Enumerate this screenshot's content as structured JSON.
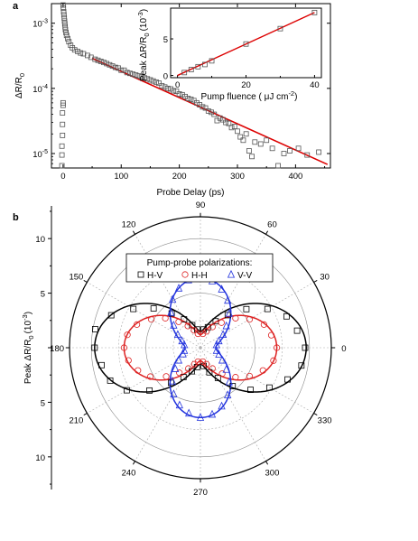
{
  "chart_data": [
    {
      "panel_label": "a",
      "type": "scatter",
      "xlabel": "Probe Delay (ps)",
      "ylabel": "ΔR/R",
      "ylabel_sub": "0",
      "xlim": [
        -20,
        460
      ],
      "ylim": [
        6e-06,
        0.002
      ],
      "yscale": "log",
      "x_ticks": [
        0,
        100,
        200,
        300,
        400
      ],
      "y_ticks": [
        {
          "value": 1e-05,
          "mant": "10",
          "exp": "-5"
        },
        {
          "value": 0.0001,
          "mant": "10",
          "exp": "-4"
        },
        {
          "value": 0.001,
          "mant": "10",
          "exp": "-3"
        }
      ],
      "series": [
        {
          "marker": "square",
          "color": "#555555",
          "points": [
            [
              -2,
              6.5e-06
            ],
            [
              -2,
              9.5e-06
            ],
            [
              -2,
              1.3e-05
            ],
            [
              -1,
              1.9e-05
            ],
            [
              -1,
              2.8e-05
            ],
            [
              -1,
              4.2e-05
            ],
            [
              0,
              5.5e-05
            ],
            [
              0,
              6e-05
            ],
            [
              0,
              0.0019
            ],
            [
              0.5,
              0.0017
            ],
            [
              1,
              0.0015
            ],
            [
              1.5,
              0.00135
            ],
            [
              2,
              0.0012
            ],
            [
              2.5,
              0.00108
            ],
            [
              3,
              0.00098
            ],
            [
              3.5,
              0.00088
            ],
            [
              4,
              0.0008
            ],
            [
              5,
              0.00072
            ],
            [
              6,
              0.00065
            ],
            [
              8,
              0.00058
            ],
            [
              10,
              0.00052
            ],
            [
              13,
              0.00046
            ],
            [
              16,
              0.00042
            ],
            [
              20,
              0.00039
            ],
            [
              25,
              0.00037
            ],
            [
              30,
              0.00035
            ],
            [
              35,
              0.00034
            ],
            [
              42,
              0.00032
            ],
            [
              48,
              0.0003
            ],
            [
              55,
              0.00028
            ],
            [
              60,
              0.00027
            ],
            [
              65,
              0.00026
            ],
            [
              70,
              0.00025
            ],
            [
              75,
              0.00024
            ],
            [
              80,
              0.00023
            ],
            [
              85,
              0.00022
            ],
            [
              90,
              0.00021
            ],
            [
              95,
              0.000205
            ],
            [
              100,
              0.00019
            ],
            [
              105,
              0.00019
            ],
            [
              110,
              0.000175
            ],
            [
              115,
              0.00017
            ],
            [
              120,
              0.000165
            ],
            [
              125,
              0.00016
            ],
            [
              130,
              0.000155
            ],
            [
              135,
              0.00015
            ],
            [
              140,
              0.000145
            ],
            [
              145,
              0.00014
            ],
            [
              150,
              0.000135
            ],
            [
              155,
              0.00013
            ],
            [
              160,
              0.000125
            ],
            [
              165,
              0.00012
            ],
            [
              170,
              0.00011
            ],
            [
              175,
              0.000105
            ],
            [
              180,
              0.0001
            ],
            [
              185,
              9.8e-05
            ],
            [
              190,
              9.2e-05
            ],
            [
              195,
              9e-05
            ],
            [
              200,
              8.2e-05
            ],
            [
              205,
              8e-05
            ],
            [
              210,
              7.5e-05
            ],
            [
              215,
              7e-05
            ],
            [
              220,
              6.8e-05
            ],
            [
              225,
              6.5e-05
            ],
            [
              230,
              6e-05
            ],
            [
              235,
              5.6e-05
            ],
            [
              240,
              5.2e-05
            ],
            [
              245,
              5e-05
            ],
            [
              250,
              4.5e-05
            ],
            [
              255,
              4.3e-05
            ],
            [
              260,
              4e-05
            ],
            [
              265,
              3.2e-05
            ],
            [
              270,
              3.5e-05
            ],
            [
              275,
              3.3e-05
            ],
            [
              280,
              3e-05
            ],
            [
              285,
              2.9e-05
            ],
            [
              290,
              2.5e-05
            ],
            [
              295,
              2.6e-05
            ],
            [
              300,
              2.2e-05
            ],
            [
              305,
              1.8e-05
            ],
            [
              310,
              1.6e-05
            ],
            [
              315,
              2e-05
            ],
            [
              320,
              1.1e-05
            ],
            [
              325,
              9e-06
            ],
            [
              330,
              1.5e-05
            ],
            [
              340,
              1.4e-05
            ],
            [
              350,
              1.6e-05
            ],
            [
              360,
              1.2e-05
            ],
            [
              370,
              6.5e-06
            ],
            [
              380,
              1e-05
            ],
            [
              390,
              1.1e-05
            ],
            [
              405,
              1.2e-05
            ],
            [
              420,
              9.5e-06
            ],
            [
              440,
              1.05e-05
            ]
          ]
        },
        {
          "type": "line",
          "color": "#dd0000",
          "x": [
            50,
            455
          ],
          "y": [
            0.00029,
            6.8e-06
          ]
        }
      ]
    },
    {
      "panel_label": "a",
      "inset": true,
      "type": "scatter",
      "xlabel": "Pump fluence ( μJ cm",
      "xlabel_sup": "-2",
      "xlabel_close": ")",
      "ylabel": "Peak ΔR/R",
      "ylabel_sub": "0",
      "ylabel_unit": "(10",
      "ylabel_unit_sup": "-3",
      "ylabel_unit_close": ")",
      "xlim": [
        -2,
        42
      ],
      "ylim": [
        -0.3,
        9.2
      ],
      "x_ticks": [
        0,
        20,
        40
      ],
      "y_ticks": [
        0,
        5
      ],
      "series": [
        {
          "marker": "square",
          "color": "#555555",
          "x": [
            2,
            4,
            6,
            8,
            10,
            20,
            30,
            40
          ],
          "y": [
            0.4,
            0.8,
            1.2,
            1.5,
            2.0,
            4.3,
            6.4,
            8.6
          ]
        },
        {
          "type": "line",
          "color": "#dd0000",
          "x": [
            0,
            40
          ],
          "y": [
            0.0,
            8.6
          ]
        }
      ]
    },
    {
      "panel_label": "b",
      "type": "polar",
      "ylabel": "Peak ΔR/R",
      "ylabel_sub": "0",
      "ylabel_unit": "(10",
      "ylabel_unit_sup": "-3",
      "ylabel_unit_close": ")",
      "r_max": 12,
      "r_ticks": [
        5,
        10
      ],
      "angle_ticks": [
        0,
        30,
        60,
        90,
        120,
        150,
        180,
        210,
        240,
        270,
        300,
        330
      ],
      "legend_title": "Pump-probe polarizations:",
      "series": [
        {
          "name": "H-V",
          "marker": "square",
          "color": "#000000",
          "fit": {
            "A": 1.5,
            "B": 8.2,
            "phi": 0
          },
          "points": [
            [
              0,
              9.6
            ],
            [
              10,
              9.0
            ],
            [
              20,
              8.4
            ],
            [
              30,
              7.1
            ],
            [
              40,
              5.5
            ],
            [
              50,
              3.9
            ],
            [
              60,
              2.8
            ],
            [
              70,
              2.0
            ],
            [
              80,
              1.7
            ],
            [
              100,
              1.7
            ],
            [
              110,
              2.2
            ],
            [
              120,
              3.0
            ],
            [
              130,
              4.1
            ],
            [
              140,
              5.6
            ],
            [
              150,
              7.1
            ],
            [
              160,
              8.7
            ],
            [
              170,
              9.8
            ],
            [
              180,
              9.7
            ],
            [
              190,
              9.2
            ],
            [
              200,
              8.8
            ],
            [
              210,
              7.8
            ],
            [
              220,
              6.1
            ],
            [
              230,
              4.2
            ],
            [
              240,
              3.1
            ],
            [
              250,
              2.3
            ],
            [
              260,
              1.8
            ],
            [
              280,
              1.7
            ],
            [
              290,
              2.4
            ],
            [
              300,
              3.2
            ],
            [
              310,
              4.6
            ],
            [
              320,
              6.0
            ],
            [
              330,
              7.3
            ],
            [
              340,
              8.5
            ],
            [
              350,
              9.4
            ]
          ]
        },
        {
          "name": "H-H",
          "marker": "circle",
          "color": "#dd2222",
          "fit": {
            "A": 1.2,
            "B": 5.8,
            "phi": 0
          },
          "points": [
            [
              0,
              7.0
            ],
            [
              10,
              6.6
            ],
            [
              20,
              6.2
            ],
            [
              30,
              5.2
            ],
            [
              40,
              4.2
            ],
            [
              50,
              3.0
            ],
            [
              60,
              2.2
            ],
            [
              70,
              1.6
            ],
            [
              80,
              1.3
            ],
            [
              100,
              1.3
            ],
            [
              110,
              1.7
            ],
            [
              120,
              2.3
            ],
            [
              130,
              3.1
            ],
            [
              140,
              4.2
            ],
            [
              150,
              5.2
            ],
            [
              160,
              6.2
            ],
            [
              170,
              6.8
            ],
            [
              180,
              7.0
            ],
            [
              190,
              6.7
            ],
            [
              200,
              6.1
            ],
            [
              210,
              5.3
            ],
            [
              220,
              4.1
            ],
            [
              230,
              3.0
            ],
            [
              240,
              2.2
            ],
            [
              250,
              1.6
            ],
            [
              260,
              1.3
            ],
            [
              280,
              1.3
            ],
            [
              290,
              1.6
            ],
            [
              300,
              2.2
            ],
            [
              310,
              3.1
            ],
            [
              320,
              4.2
            ],
            [
              330,
              5.2
            ],
            [
              340,
              6.1
            ],
            [
              350,
              6.8
            ]
          ]
        },
        {
          "name": "V-V",
          "marker": "triangle",
          "color": "#2233dd",
          "fit": {
            "A": 1.4,
            "B": 5.0,
            "phi": 90
          },
          "points": [
            [
              90,
              6.5
            ],
            [
              80,
              6.2
            ],
            [
              70,
              5.7
            ],
            [
              60,
              5.0
            ],
            [
              50,
              4.1
            ],
            [
              40,
              3.1
            ],
            [
              30,
              2.4
            ],
            [
              20,
              1.8
            ],
            [
              10,
              1.5
            ],
            [
              100,
              6.3
            ],
            [
              110,
              5.8
            ],
            [
              120,
              5.1
            ],
            [
              130,
              4.2
            ],
            [
              140,
              3.2
            ],
            [
              150,
              2.4
            ],
            [
              160,
              1.8
            ],
            [
              170,
              1.5
            ],
            [
              270,
              6.4
            ],
            [
              260,
              6.1
            ],
            [
              250,
              5.6
            ],
            [
              240,
              4.9
            ],
            [
              230,
              4.0
            ],
            [
              220,
              3.0
            ],
            [
              210,
              2.3
            ],
            [
              200,
              1.7
            ],
            [
              190,
              1.5
            ],
            [
              280,
              6.2
            ],
            [
              290,
              5.7
            ],
            [
              300,
              5.0
            ],
            [
              310,
              4.1
            ],
            [
              320,
              3.1
            ],
            [
              330,
              2.3
            ],
            [
              340,
              1.8
            ],
            [
              350,
              1.5
            ]
          ]
        }
      ]
    }
  ]
}
